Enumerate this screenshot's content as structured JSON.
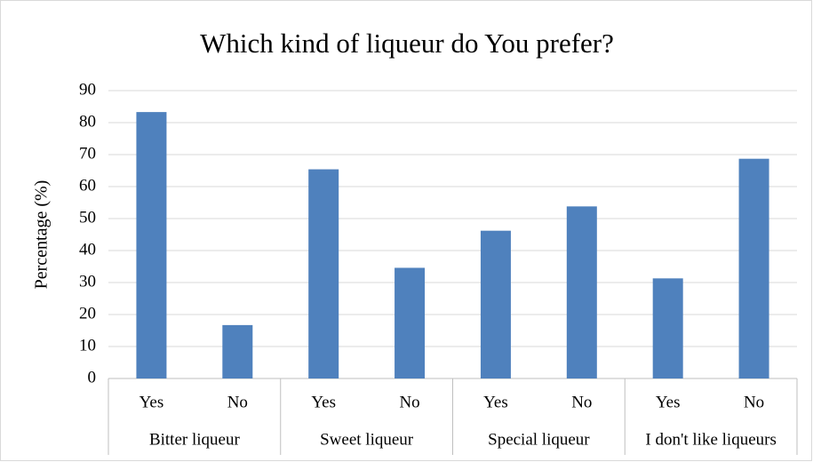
{
  "chart_data": {
    "type": "bar",
    "title": "Which kind of liqueur do You prefer?",
    "y_label": "Percentage (%)",
    "categories": [
      "Yes",
      "No",
      "Yes",
      "No",
      "Yes",
      "No",
      "Yes",
      "No"
    ],
    "groups": [
      "Bitter liqueur",
      "Sweet liqueur",
      "Special liqueur",
      "I don't like liqueurs"
    ],
    "values": [
      83.3,
      16.7,
      65.4,
      34.6,
      46.2,
      53.8,
      31.3,
      68.7
    ],
    "color": "#4f81bd",
    "ylim": [
      0,
      90
    ],
    "yticks": [
      0,
      10,
      20,
      30,
      40,
      50,
      60,
      70,
      80,
      90
    ],
    "grid": true
  }
}
